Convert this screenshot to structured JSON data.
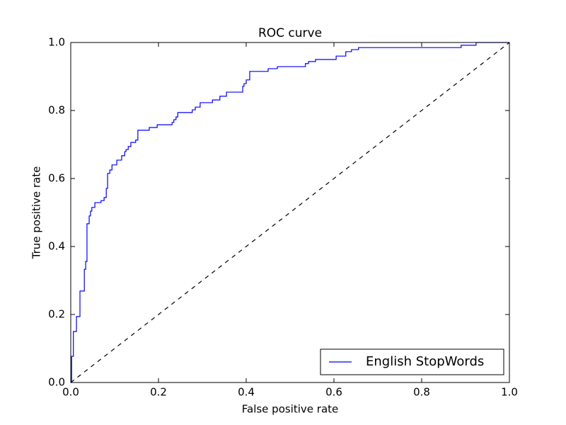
{
  "chart_data": {
    "type": "line",
    "title": "ROC curve",
    "xlabel": "False positive rate",
    "ylabel": "True positive rate",
    "xlim": [
      0,
      1
    ],
    "ylim": [
      0,
      1
    ],
    "xticks": [
      {
        "value": 0,
        "label": "0.0"
      },
      0.2,
      0.4,
      0.6,
      0.8,
      {
        "value": 1,
        "label": "1.0"
      }
    ],
    "yticks": [
      {
        "value": 0,
        "label": "0.0"
      },
      0.2,
      0.4,
      0.6,
      0.8,
      {
        "value": 1,
        "label": "1.0"
      }
    ],
    "legend": "lower right",
    "series": [
      {
        "name": "English StopWords",
        "color": "#0000ff",
        "style": "solid",
        "x": [
          0,
          0.002,
          0.002,
          0.006,
          0.006,
          0.013,
          0.013,
          0.021,
          0.021,
          0.031,
          0.031,
          0.034,
          0.034,
          0.037,
          0.037,
          0.042,
          0.042,
          0.045,
          0.045,
          0.048,
          0.048,
          0.055,
          0.055,
          0.069,
          0.069,
          0.076,
          0.076,
          0.081,
          0.081,
          0.084,
          0.084,
          0.089,
          0.089,
          0.094,
          0.094,
          0.105,
          0.105,
          0.116,
          0.116,
          0.123,
          0.123,
          0.126,
          0.126,
          0.131,
          0.131,
          0.137,
          0.137,
          0.148,
          0.148,
          0.153,
          0.153,
          0.179,
          0.179,
          0.197,
          0.197,
          0.231,
          0.231,
          0.235,
          0.235,
          0.24,
          0.24,
          0.244,
          0.244,
          0.277,
          0.277,
          0.284,
          0.284,
          0.295,
          0.295,
          0.323,
          0.323,
          0.34,
          0.34,
          0.355,
          0.355,
          0.392,
          0.392,
          0.395,
          0.395,
          0.4,
          0.4,
          0.408,
          0.408,
          0.45,
          0.45,
          0.471,
          0.471,
          0.535,
          0.535,
          0.542,
          0.542,
          0.558,
          0.558,
          0.605,
          0.605,
          0.627,
          0.627,
          0.64,
          0.64,
          0.656,
          0.656,
          0.89,
          0.89,
          0.924,
          0.924,
          1
        ],
        "values": [
          0,
          0,
          0.077,
          0.077,
          0.15,
          0.15,
          0.194,
          0.194,
          0.269,
          0.269,
          0.333,
          0.333,
          0.356,
          0.356,
          0.467,
          0.467,
          0.49,
          0.49,
          0.504,
          0.504,
          0.515,
          0.515,
          0.529,
          0.529,
          0.535,
          0.535,
          0.544,
          0.544,
          0.571,
          0.571,
          0.615,
          0.615,
          0.625,
          0.625,
          0.64,
          0.64,
          0.654,
          0.654,
          0.667,
          0.667,
          0.679,
          0.679,
          0.685,
          0.685,
          0.694,
          0.694,
          0.706,
          0.706,
          0.713,
          0.713,
          0.742,
          0.742,
          0.75,
          0.75,
          0.758,
          0.758,
          0.765,
          0.765,
          0.773,
          0.773,
          0.781,
          0.781,
          0.794,
          0.794,
          0.802,
          0.802,
          0.81,
          0.81,
          0.823,
          0.823,
          0.831,
          0.831,
          0.842,
          0.842,
          0.854,
          0.854,
          0.871,
          0.871,
          0.879,
          0.879,
          0.89,
          0.89,
          0.915,
          0.915,
          0.923,
          0.923,
          0.929,
          0.929,
          0.938,
          0.938,
          0.944,
          0.944,
          0.95,
          0.95,
          0.96,
          0.96,
          0.973,
          0.973,
          0.979,
          0.979,
          0.985,
          0.985,
          0.992,
          0.992,
          1.0,
          1
        ]
      },
      {
        "color": "#000000",
        "style": "dashed",
        "x": [
          0,
          1
        ],
        "values": [
          0,
          1
        ]
      }
    ]
  }
}
